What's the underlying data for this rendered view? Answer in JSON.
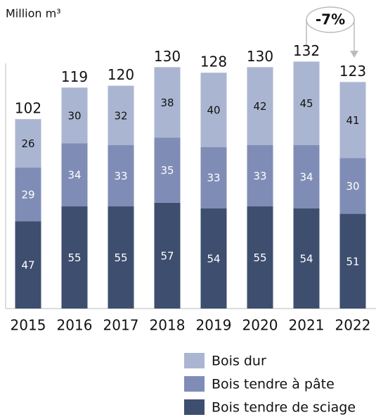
{
  "chart_data": {
    "type": "stacked-bar",
    "y_label": "Million m³",
    "annotation": "-7%",
    "categories": [
      "2015",
      "2016",
      "2017",
      "2018",
      "2019",
      "2020",
      "2021",
      "2022"
    ],
    "series": [
      {
        "name": "Bois tendre de sciage",
        "color": "#3e4e6f",
        "label_color": "#ffffff",
        "values": [
          47,
          55,
          55,
          57,
          54,
          55,
          54,
          51
        ]
      },
      {
        "name": "Bois tendre à pâte",
        "color": "#7f8db6",
        "label_color": "#ffffff",
        "values": [
          29,
          34,
          33,
          35,
          33,
          33,
          34,
          30
        ]
      },
      {
        "name": "Bois dur",
        "color": "#aab6d1",
        "label_color": "#111111",
        "values": [
          26,
          30,
          32,
          38,
          40,
          42,
          45,
          41
        ]
      }
    ],
    "totals": [
      102,
      119,
      120,
      130,
      128,
      130,
      132,
      123
    ],
    "ylim": [
      0,
      140
    ]
  }
}
